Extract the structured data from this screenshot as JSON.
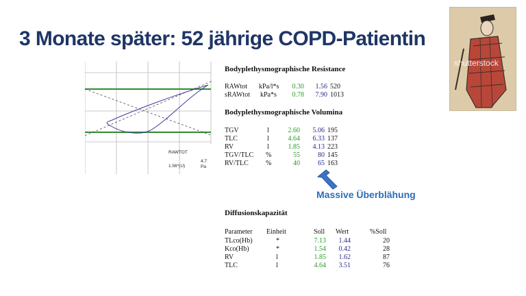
{
  "title": "3 Monate später: 52 jährige COPD-Patientin",
  "plot": {
    "label": "RAWTOT",
    "value": "1.56*(U)",
    "scale_value": "4.7",
    "scale_unit": "Pa"
  },
  "resistance": {
    "heading": "Bodyplethysmographische Resistance",
    "rows": [
      {
        "name": "RAWtot",
        "unit": "kPa/l*s",
        "soll": "0.30",
        "wert": "1.56",
        "pct": "520"
      },
      {
        "name": "sRAWtot",
        "unit": "kPa*s",
        "soll": "0.78",
        "wert": "7.90",
        "pct": "1013"
      }
    ]
  },
  "volumina": {
    "heading": "Bodyplethysmographische Volumina",
    "rows": [
      {
        "name": "TGV",
        "unit": "l",
        "soll": "2.60",
        "wert": "5.06",
        "pct": "195"
      },
      {
        "name": "TLC",
        "unit": "l",
        "soll": "4.64",
        "wert": "6.33",
        "pct": "137"
      },
      {
        "name": "RV",
        "unit": "l",
        "soll": "1.85",
        "wert": "4.13",
        "pct": "223"
      },
      {
        "name": "TGV/TLC",
        "unit": "%",
        "soll": "55",
        "wert": "80",
        "pct": "145"
      },
      {
        "name": "RV/TLC",
        "unit": "%",
        "soll": "40",
        "wert": "65",
        "pct": "163"
      }
    ]
  },
  "annotation": {
    "text": "Massive Überblähung",
    "color": "#2c6db5"
  },
  "diffusion": {
    "heading": "Diffusionskapazität",
    "headers": {
      "param": "Parameter",
      "unit": "Einheit",
      "soll": "Soll",
      "wert": "Wert",
      "pct": "%Soll"
    },
    "rows": [
      {
        "name": "TLco(Hb)",
        "unit": "*",
        "soll": "7.13",
        "wert": "1.44",
        "pct": "20"
      },
      {
        "name": "Kco(Hb)",
        "unit": "*",
        "soll": "1.54",
        "wert": "0.42",
        "pct": "28"
      },
      {
        "name": "RV",
        "unit": "l",
        "soll": "1.85",
        "wert": "1.62",
        "pct": "87"
      },
      {
        "name": "TLC",
        "unit": "l",
        "soll": "4.64",
        "wert": "3.51",
        "pct": "76"
      }
    ]
  },
  "photo": {
    "watermark": "shutterstock"
  },
  "colors": {
    "title": "#1f3566",
    "soll": "#2a9a2a",
    "wert": "#2a2a8a",
    "green_line": "#2e8b2e",
    "loop": "#3b3b9a"
  }
}
